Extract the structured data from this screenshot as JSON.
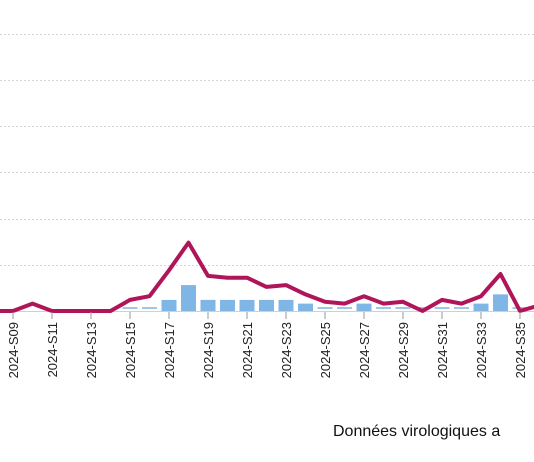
{
  "chart_data": {
    "type": "bar+line",
    "title": "",
    "xlabel": "",
    "ylabel": "",
    "grid": true,
    "categories": [
      "2024-S08",
      "2024-S09",
      "2024-S10",
      "2024-S11",
      "2024-S12",
      "2024-S13",
      "2024-S14",
      "2024-S15",
      "2024-S16",
      "2024-S17",
      "2024-S18",
      "2024-S19",
      "2024-S20",
      "2024-S21",
      "2024-S22",
      "2024-S23",
      "2024-S24",
      "2024-S25",
      "2024-S26",
      "2024-S27",
      "2024-S28",
      "2024-S29",
      "2024-S30",
      "2024-S31",
      "2024-S32",
      "2024-S33",
      "2024-S34",
      "2024-S35",
      "2024-S36"
    ],
    "tick_labels": [
      "2024-S09",
      "2024-S11",
      "2024-S13",
      "2024-S15",
      "2024-S17",
      "2024-S19",
      "2024-S21",
      "2024-S23",
      "2024-S25",
      "2024-S27",
      "2024-S29",
      "2024-S31",
      "2024-S33",
      "2024-S35"
    ],
    "ylim": [
      0,
      15
    ],
    "y_gridlines": [
      2.5,
      5,
      7.5,
      10,
      12.5,
      15
    ],
    "series": [
      {
        "kind": "bar",
        "color": "#7fb6e6",
        "dashed_color": "#9ec6ea",
        "values": [
          0,
          0,
          0,
          0,
          0,
          0,
          0,
          0.1,
          0.1,
          0.6,
          1.4,
          0.6,
          0.6,
          0.6,
          0.6,
          0.6,
          0.4,
          0.1,
          0.1,
          0.4,
          0.1,
          0.1,
          0.1,
          0.1,
          0.1,
          0.4,
          0.9,
          0.1,
          0.1
        ]
      },
      {
        "kind": "line",
        "color": "#b0155a",
        "values": [
          0.0,
          0.0,
          0.4,
          0.0,
          0.0,
          0.0,
          0.0,
          0.6,
          0.8,
          2.2,
          3.7,
          1.9,
          1.8,
          1.8,
          1.3,
          1.4,
          0.9,
          0.5,
          0.4,
          0.8,
          0.4,
          0.5,
          0.0,
          0.6,
          0.4,
          0.8,
          2.0,
          0.0,
          0.3
        ]
      }
    ]
  },
  "footer": {
    "source_label": "Données virologiques a"
  }
}
